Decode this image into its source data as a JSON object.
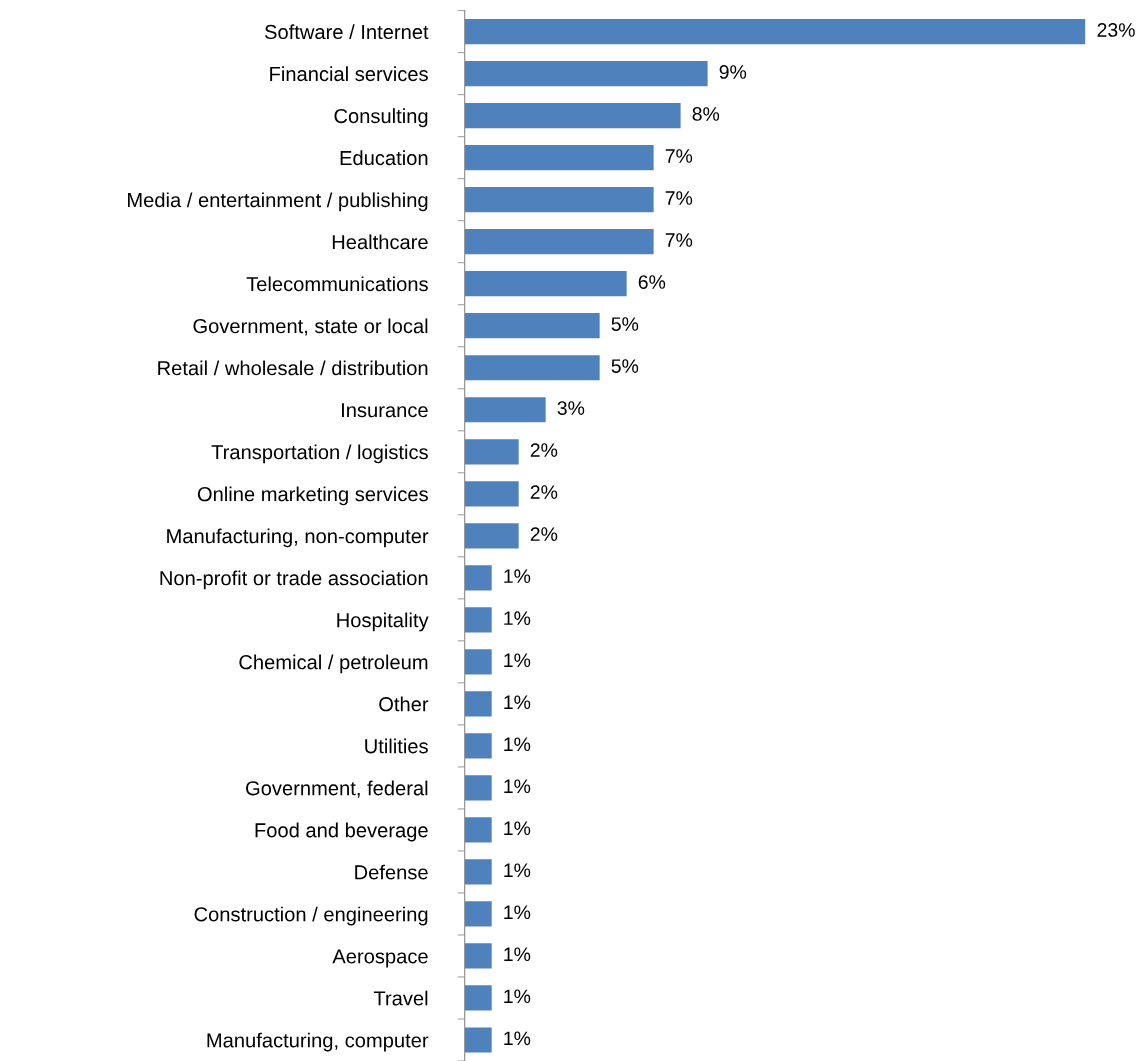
{
  "chart_data": {
    "type": "bar",
    "orientation": "horizontal",
    "categories": [
      "Software / Internet",
      "Financial services",
      "Consulting",
      "Education",
      "Media / entertainment / publishing",
      "Healthcare",
      "Telecommunications",
      "Government, state or local",
      "Retail / wholesale / distribution",
      "Insurance",
      "Transportation / logistics",
      "Online marketing services",
      "Manufacturing, non-computer",
      "Non-profit or trade association",
      "Hospitality",
      "Chemical / petroleum",
      "Other",
      "Utilities",
      "Government, federal",
      "Food and beverage",
      "Defense",
      "Construction / engineering",
      "Aerospace",
      "Travel",
      "Manufacturing, computer"
    ],
    "values": [
      23,
      9,
      8,
      7,
      7,
      7,
      6,
      5,
      5,
      3,
      2,
      2,
      2,
      1,
      1,
      1,
      1,
      1,
      1,
      1,
      1,
      1,
      1,
      1,
      1
    ],
    "color": "#4f81bd",
    "value_labels": [
      "23%",
      "9%",
      "8%",
      "7%",
      "7%",
      "7%",
      "6%",
      "5%",
      "5%",
      "3%",
      "2%",
      "2%",
      "2%",
      "1%",
      "1%",
      "1%",
      "1%",
      "1%",
      "1%",
      "1%",
      "1%",
      "1%",
      "1%",
      "1%",
      "1%"
    ],
    "tick_labels": "y",
    "grid": false,
    "legend": false
  }
}
